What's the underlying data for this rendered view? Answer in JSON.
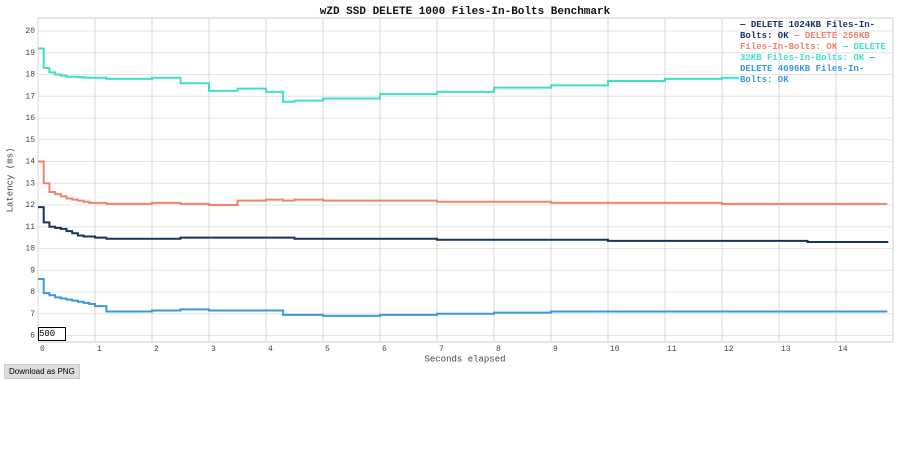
{
  "chart_data": {
    "type": "line",
    "step": true,
    "title": "wZD SSD DELETE 1000 Files-In-Bolts Benchmark",
    "xlabel": "Seconds elapsed",
    "ylabel": "Latency (ms)",
    "x": [
      0,
      0.1,
      0.2,
      0.3,
      0.4,
      0.5,
      0.6,
      0.7,
      0.8,
      0.9,
      1,
      1.2,
      1.5,
      2,
      2.5,
      3,
      3.5,
      4,
      4.3,
      4.5,
      5,
      6,
      7,
      8,
      9,
      10,
      11,
      12,
      12.3,
      13,
      13.5,
      14,
      14.9
    ],
    "series": [
      {
        "name": "DELETE 1024KB Files-In-Bolts: OK",
        "color": "#15355f",
        "values": [
          11.9,
          11.2,
          11.0,
          10.95,
          10.9,
          10.8,
          10.7,
          10.6,
          10.55,
          10.55,
          10.5,
          10.45,
          10.45,
          10.45,
          10.5,
          10.5,
          10.5,
          10.5,
          10.5,
          10.45,
          10.45,
          10.45,
          10.4,
          10.4,
          10.4,
          10.35,
          10.35,
          10.35,
          10.35,
          10.35,
          10.3,
          10.3,
          10.25
        ]
      },
      {
        "name": "DELETE 256KB Files-In-Bolts: OK",
        "color": "#f0826e",
        "values": [
          14,
          13,
          12.6,
          12.5,
          12.4,
          12.3,
          12.25,
          12.2,
          12.15,
          12.1,
          12.1,
          12.05,
          12.05,
          12.1,
          12.05,
          12.0,
          12.2,
          12.25,
          12.2,
          12.25,
          12.2,
          12.2,
          12.15,
          12.15,
          12.1,
          12.1,
          12.1,
          12.05,
          12.05,
          12.05,
          12.05,
          12.05,
          12.05
        ]
      },
      {
        "name": "DELETE 32KB Files-In-Bolts: OK",
        "color": "#40e0c8",
        "values": [
          19.2,
          18.3,
          18.1,
          18.0,
          17.95,
          17.9,
          17.9,
          17.88,
          17.86,
          17.85,
          17.85,
          17.8,
          17.8,
          17.85,
          17.6,
          17.25,
          17.35,
          17.2,
          16.75,
          16.8,
          16.9,
          17.1,
          17.2,
          17.4,
          17.5,
          17.7,
          17.8,
          17.85,
          17.85,
          null,
          null,
          null,
          null
        ]
      },
      {
        "name": "DELETE 4096KB Files-In-Bolts: OK",
        "color": "#3a9ad9",
        "values": [
          8.6,
          7.95,
          7.85,
          7.75,
          7.7,
          7.65,
          7.6,
          7.55,
          7.5,
          7.45,
          7.35,
          7.1,
          7.1,
          7.15,
          7.2,
          7.15,
          7.15,
          7.15,
          6.95,
          6.95,
          6.9,
          6.95,
          7.0,
          7.05,
          7.1,
          7.1,
          7.1,
          7.1,
          7.1,
          7.1,
          7.1,
          7.1,
          7.1
        ]
      }
    ],
    "xlim": [
      0,
      15
    ],
    "ylim": [
      5.7,
      20.6
    ],
    "xticks": [
      0,
      1,
      2,
      3,
      4,
      5,
      6,
      7,
      8,
      9,
      10,
      11,
      12,
      13,
      14
    ],
    "yticks": [
      6,
      7,
      8,
      9,
      10,
      11,
      12,
      13,
      14,
      15,
      16,
      17,
      18,
      19,
      20
    ],
    "grid": true,
    "legend": "top-right",
    "range_box": "500",
    "button": "Download as PNG"
  }
}
